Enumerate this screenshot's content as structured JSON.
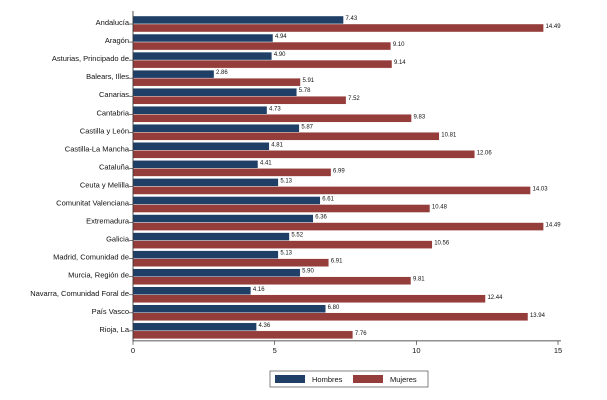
{
  "chart_data": {
    "type": "bar",
    "orientation": "horizontal",
    "categories": [
      "Andalucía",
      "Aragón",
      "Asturias, Principado de",
      "Balears, Illes",
      "Canarias",
      "Cantabria",
      "Castilla y León",
      "Castilla-La Mancha",
      "Cataluña",
      "Ceuta y Melilla",
      "Comunitat Valenciana",
      "Extremadura",
      "Galicia",
      "Madrid, Comunidad de",
      "Murcia, Región de",
      "Navarra, Comunidad Foral de",
      "País Vasco",
      "Rioja, La"
    ],
    "series": [
      {
        "name": "Hombres",
        "color": "#1f3f66",
        "values": [
          7.43,
          4.94,
          4.9,
          2.86,
          5.78,
          4.73,
          5.87,
          4.81,
          4.41,
          5.13,
          6.61,
          6.36,
          5.52,
          5.13,
          5.9,
          4.16,
          6.8,
          4.36
        ],
        "labels": [
          "7.43",
          "4.94",
          "4.90",
          "2.86",
          "5.78",
          "4.73",
          "5.87",
          "4.81",
          "4.41",
          "5.13",
          "6.61",
          "6.36",
          "5.52",
          "5.13",
          "5.90",
          "4.16",
          "6.80",
          "4.36"
        ]
      },
      {
        "name": "Mujeres",
        "color": "#953d3b",
        "values": [
          14.49,
          9.1,
          9.14,
          5.91,
          7.52,
          9.83,
          10.81,
          12.06,
          6.99,
          14.03,
          10.48,
          14.49,
          10.56,
          6.91,
          9.81,
          12.44,
          13.94,
          7.76
        ],
        "labels": [
          "14.49",
          "9.10",
          "9.14",
          "5.91",
          "7.52",
          "9.83",
          "10.81",
          "12.06",
          "6.99",
          "14.03",
          "10.48",
          "14.49",
          "10.56",
          "6.91",
          "9.81",
          "12.44",
          "13.94",
          "7.76"
        ]
      }
    ],
    "xlim": [
      0,
      15
    ],
    "xticks": [
      0,
      5,
      10,
      15
    ],
    "xtick_labels": [
      "0",
      "5",
      "10",
      "15"
    ],
    "title": "",
    "xlabel": "",
    "ylabel": "",
    "grid": false,
    "legend_position": "bottom"
  }
}
